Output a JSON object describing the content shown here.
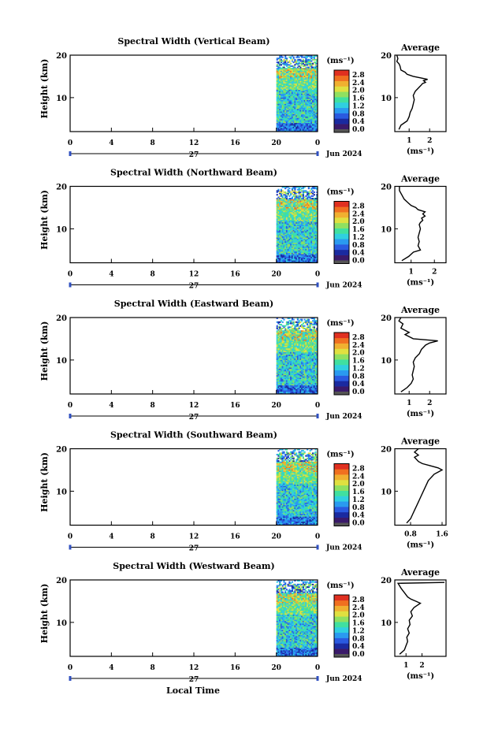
{
  "chart_data": [
    {
      "type": "heatmap",
      "title": "Spectral Width (Vertical Beam)",
      "ylabel": "Height (km)",
      "xticks": [
        "0",
        "4",
        "8",
        "12",
        "16",
        "20",
        "0"
      ],
      "xlim": [
        0,
        24
      ],
      "ylim": [
        2,
        20
      ],
      "yticks": [
        "10",
        "20"
      ],
      "date_label": "27",
      "month_label": "Jun 2024",
      "colorbar": {
        "unit": "(ms⁻¹)",
        "ticks": [
          "2.8",
          "2.4",
          "2.0",
          "1.6",
          "1.2",
          "0.8",
          "0.4",
          "0.0"
        ]
      },
      "average": {
        "title": "Average",
        "xlabel": "(ms⁻¹)",
        "xticks": [
          "1",
          "2"
        ],
        "xlim": [
          0.3,
          2.8
        ],
        "ylim": [
          2,
          20
        ],
        "yticks": [
          "10",
          "20"
        ],
        "x": [
          0.5,
          0.6,
          0.9,
          1.0,
          1.05,
          1.15,
          1.2,
          1.25,
          1.2,
          1.25,
          1.3,
          1.4,
          1.5,
          1.6,
          1.65,
          1.8,
          1.7,
          1.9,
          1.6,
          1.2,
          0.9,
          0.8,
          0.6,
          0.55,
          0.5,
          0.4,
          0.45,
          0.4
        ],
        "y": [
          2.5,
          3.5,
          4.5,
          5.5,
          6.5,
          7.5,
          8.5,
          9.5,
          10.5,
          11,
          11.5,
          12,
          12.5,
          13,
          13.3,
          13.6,
          14,
          14.3,
          14.6,
          15,
          15.5,
          16,
          16.5,
          17.5,
          18,
          18.5,
          19.2,
          20
        ]
      }
    },
    {
      "type": "heatmap",
      "title": "Spectral Width (Northward Beam)",
      "ylabel": "Height (km)",
      "xticks": [
        "0",
        "4",
        "8",
        "12",
        "16",
        "20",
        "0"
      ],
      "xlim": [
        0,
        24
      ],
      "ylim": [
        2,
        20
      ],
      "yticks": [
        "10",
        "20"
      ],
      "date_label": "27",
      "month_label": "Jun 2024",
      "colorbar": {
        "unit": "(ms⁻¹)",
        "ticks": [
          "2.8",
          "2.4",
          "2.0",
          "1.6",
          "1.2",
          "0.8",
          "0.4",
          "0.0"
        ]
      },
      "average": {
        "title": "Average",
        "xlabel": "(ms⁻¹)",
        "xticks": [
          "1",
          "2"
        ],
        "xlim": [
          0.3,
          2.5
        ],
        "ylim": [
          2,
          20
        ],
        "yticks": [
          "10",
          "20"
        ],
        "x": [
          0.6,
          0.9,
          1.1,
          1.4,
          1.3,
          1.35,
          1.3,
          1.35,
          1.4,
          1.35,
          1.4,
          1.5,
          1.45,
          1.6,
          1.5,
          1.6,
          1.3,
          1.2,
          1.0,
          0.9,
          0.7,
          0.6,
          0.5,
          0.5
        ],
        "y": [
          2.5,
          3.5,
          4.5,
          5,
          6,
          7,
          8,
          9,
          10,
          11,
          11.5,
          12,
          12.5,
          13,
          13.5,
          14,
          14.5,
          15,
          15.5,
          16,
          17,
          18,
          19,
          20
        ]
      }
    },
    {
      "type": "heatmap",
      "title": "Spectral Width (Eastward Beam)",
      "ylabel": "Height (km)",
      "xticks": [
        "0",
        "4",
        "8",
        "12",
        "16",
        "20",
        "0"
      ],
      "xlim": [
        0,
        24
      ],
      "ylim": [
        2,
        20
      ],
      "yticks": [
        "10",
        "20"
      ],
      "date_label": "27",
      "month_label": "Jun 2024",
      "colorbar": {
        "unit": "(ms⁻¹)",
        "ticks": [
          "2.8",
          "2.4",
          "2.0",
          "1.6",
          "1.2",
          "0.8",
          "0.4",
          "0.0"
        ]
      },
      "average": {
        "title": "Average",
        "xlabel": "(ms⁻¹)",
        "xticks": [
          "1",
          "2"
        ],
        "xlim": [
          0.3,
          2.8
        ],
        "ylim": [
          2,
          20
        ],
        "yticks": [
          "10",
          "20"
        ],
        "x": [
          0.6,
          0.9,
          1.1,
          1.2,
          1.15,
          1.2,
          1.25,
          1.2,
          1.3,
          1.5,
          1.6,
          1.8,
          2.0,
          2.4,
          1.2,
          1.0,
          0.8,
          1.0,
          0.6,
          0.7,
          0.5,
          0.6
        ],
        "y": [
          2.5,
          3.5,
          4.5,
          5.5,
          6.5,
          7.5,
          8.5,
          9.5,
          10.5,
          11.5,
          12.5,
          13.5,
          14,
          14.5,
          15,
          15.5,
          16,
          16.5,
          17.5,
          18.5,
          19.2,
          20
        ]
      }
    },
    {
      "type": "heatmap",
      "title": "Spectral Width (Southward Beam)",
      "ylabel": "Height (km)",
      "xticks": [
        "0",
        "4",
        "8",
        "12",
        "16",
        "20",
        "0"
      ],
      "xlim": [
        0,
        24
      ],
      "ylim": [
        2,
        20
      ],
      "yticks": [
        "10",
        "20"
      ],
      "date_label": "27",
      "month_label": "Jun 2024",
      "colorbar": {
        "unit": "(ms⁻¹)",
        "ticks": [
          "2.8",
          "2.4",
          "2.0",
          "1.6",
          "1.2",
          "0.8",
          "0.4",
          "0.0"
        ]
      },
      "average": {
        "title": "Average",
        "xlabel": "(ms⁻¹)",
        "xticks": [
          "0.8",
          "1.6"
        ],
        "xlim": [
          0.4,
          1.7
        ],
        "ylim": [
          2,
          20
        ],
        "yticks": [
          "10",
          "20"
        ],
        "x": [
          0.7,
          0.8,
          0.85,
          0.9,
          0.95,
          1.0,
          1.05,
          1.1,
          1.15,
          1.2,
          1.25,
          1.3,
          1.35,
          1.4,
          1.5,
          1.6,
          1.5,
          1.3,
          1.1,
          1.0,
          0.9,
          1.0,
          0.9,
          1.0
        ],
        "y": [
          2.5,
          3.5,
          4.5,
          5.5,
          6.5,
          7.5,
          8.5,
          9.5,
          10.5,
          11.5,
          12.5,
          13,
          13.5,
          14,
          14.5,
          15,
          15.5,
          16,
          16.5,
          17,
          18,
          18.5,
          19.2,
          20
        ]
      }
    },
    {
      "type": "heatmap",
      "title": "Spectral Width (Westward Beam)",
      "ylabel": "Height (km)",
      "xticks": [
        "0",
        "4",
        "8",
        "12",
        "16",
        "20",
        "0"
      ],
      "xlim": [
        0,
        24
      ],
      "ylim": [
        2,
        20
      ],
      "yticks": [
        "10",
        "20"
      ],
      "date_label": "27",
      "month_label": "Jun 2024",
      "colorbar": {
        "unit": "(ms⁻¹)",
        "ticks": [
          "2.8",
          "2.4",
          "2.0",
          "1.6",
          "1.2",
          "0.8",
          "0.4",
          "0.0"
        ]
      },
      "average": {
        "title": "Average",
        "xlabel": "(ms⁻¹)",
        "xticks": [
          "1",
          "2"
        ],
        "xlim": [
          0.3,
          3.5
        ],
        "ylim": [
          2,
          20
        ],
        "yticks": [
          "10",
          "20"
        ],
        "x": [
          0.6,
          0.9,
          1.0,
          1.1,
          1.05,
          1.2,
          1.1,
          1.25,
          1.2,
          1.4,
          1.3,
          1.5,
          1.7,
          1.9,
          1.6,
          1.3,
          1.1,
          0.9,
          0.7,
          0.6,
          0.5,
          3.4
        ],
        "y": [
          2.5,
          3.5,
          4.5,
          5.5,
          6.5,
          7.5,
          8.5,
          9.5,
          10.5,
          11.5,
          12.5,
          13.5,
          14,
          14.5,
          15,
          15.5,
          16,
          17,
          18,
          18.6,
          19.2,
          19.4
        ]
      }
    }
  ],
  "xlabel": "Local Time",
  "colorscale": [
    "#3a1a6a",
    "#1a2aa0",
    "#2a5ae0",
    "#2a9af0",
    "#30d0e0",
    "#40e0a0",
    "#90e060",
    "#e0e040",
    "#f0b030",
    "#f07020",
    "#e03020"
  ]
}
